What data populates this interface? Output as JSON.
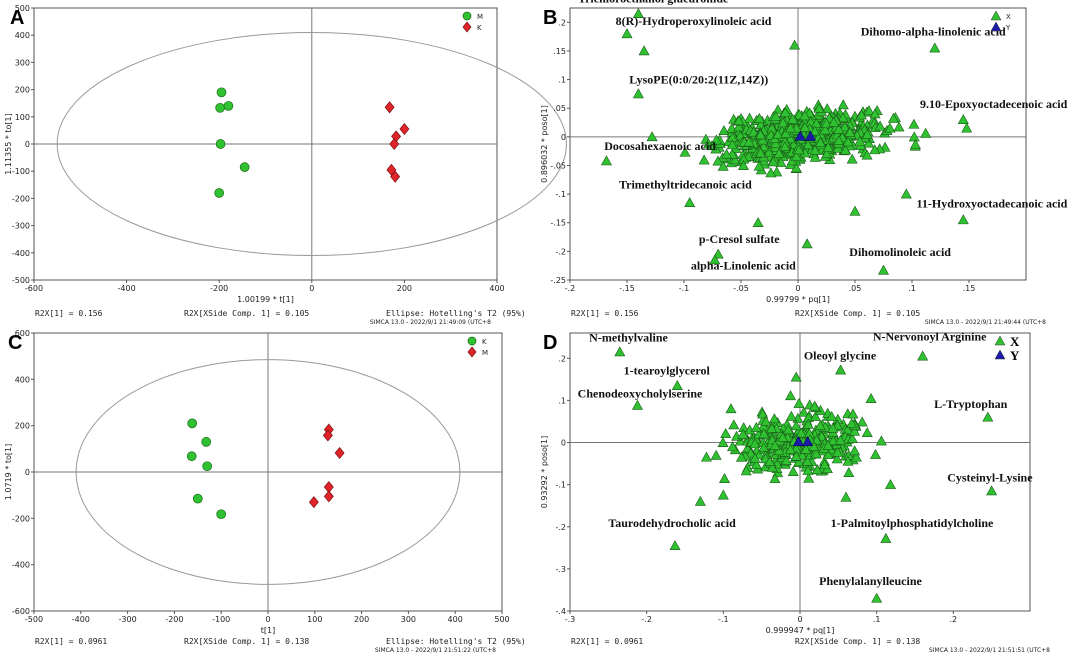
{
  "chart_data": [
    {
      "panel": "A",
      "type": "scatter",
      "subtype": "OPLS-DA score plot",
      "xlabel": "1.00199 * t[1]",
      "ylabel": "1.11355 * to[1]",
      "xlim": [
        -600,
        400
      ],
      "ylim": [
        -500,
        500
      ],
      "xticks": [
        -600,
        -400,
        -200,
        0,
        200,
        400
      ],
      "yticks": [
        -500,
        -400,
        -300,
        -200,
        -100,
        0,
        100,
        200,
        300,
        400,
        500
      ],
      "ellipse": {
        "rx": 550,
        "ry": 410
      },
      "legend": [
        {
          "name": "M",
          "marker": "circle",
          "color": "#2fc12f"
        },
        {
          "name": "K",
          "marker": "diamond",
          "color": "#e0242a"
        }
      ],
      "series": [
        {
          "name": "M",
          "marker": "circle",
          "points": [
            [
              -195,
              190
            ],
            [
              -198,
              133
            ],
            [
              -180,
              140
            ],
            [
              -197,
              0
            ],
            [
              -145,
              -85
            ],
            [
              -200,
              -180
            ]
          ]
        },
        {
          "name": "K",
          "marker": "diamond",
          "points": [
            [
              168,
              135
            ],
            [
              200,
              55
            ],
            [
              182,
              28
            ],
            [
              178,
              0
            ],
            [
              172,
              -95
            ],
            [
              180,
              -120
            ]
          ]
        }
      ],
      "footer": {
        "r2x": "R2X[1] = 0.156",
        "r2x_xside": "R2X[XSide Comp. 1] = 0.105",
        "ellipse": "Ellipse: Hotelling's T2 (95%)",
        "stamp": "SIMCA 13.0 - 2022/9/1 21:49:09 (UTC+8"
      }
    },
    {
      "panel": "B",
      "type": "scatter",
      "subtype": "S-plot",
      "xlabel": "0.99799 * pq[1]",
      "ylabel": "0.896032 * poso[1]",
      "xlim": [
        -0.2,
        0.2
      ],
      "ylim": [
        -0.25,
        0.225
      ],
      "xticks": [
        -0.2,
        -0.15,
        -0.1,
        -0.05,
        0,
        0.05,
        0.1,
        0.15
      ],
      "yticks": [
        -0.25,
        -0.2,
        -0.15,
        -0.1,
        -0.05,
        0,
        0.05,
        0.1,
        0.15,
        0.2
      ],
      "legend": [
        {
          "name": "X",
          "marker": "triangle",
          "color": "#2fc12f"
        },
        {
          "name": "Y",
          "marker": "triangle",
          "color": "#1c1ca8"
        }
      ],
      "y_points": [
        [
          0.002,
          0.001
        ],
        [
          0.011,
          0.001
        ]
      ],
      "cloud": {
        "count": 620,
        "x_spread": 0.033,
        "y_spread": 0.021,
        "seed": 7
      },
      "outliers": [
        [
          -0.14,
          0.215
        ],
        [
          -0.15,
          0.18
        ],
        [
          -0.135,
          0.15
        ],
        [
          -0.003,
          0.16
        ],
        [
          0.12,
          0.155
        ],
        [
          -0.14,
          0.075
        ],
        [
          -0.128,
          0.0
        ],
        [
          -0.168,
          -0.042
        ],
        [
          0.145,
          0.03
        ],
        [
          0.148,
          0.015
        ],
        [
          -0.095,
          -0.115
        ],
        [
          -0.07,
          -0.205
        ],
        [
          -0.073,
          -0.215
        ],
        [
          0.008,
          -0.187
        ],
        [
          0.075,
          -0.233
        ],
        [
          0.145,
          -0.145
        ],
        [
          0.095,
          -0.1
        ],
        [
          0.05,
          -0.13
        ],
        [
          -0.035,
          -0.15
        ],
        [
          0.112,
          0.006
        ]
      ],
      "annotations": [
        {
          "text": "Trichloroethanol glucuronide",
          "x": -0.193,
          "y": 0.235
        },
        {
          "text": "8(R)-Hydroperoxylinoleic acid",
          "x": -0.16,
          "y": 0.195
        },
        {
          "text": "Dihomo-alpha-linolenic acid",
          "x": 0.055,
          "y": 0.177
        },
        {
          "text": "LysoPE(0:0/20:2(11Z,14Z))",
          "x": -0.148,
          "y": 0.093
        },
        {
          "text": "9.10-Epoxyoctadecenoic acid",
          "x": 0.107,
          "y": 0.05
        },
        {
          "text": "Docosahexaenoic acid",
          "x": -0.17,
          "y": -0.023
        },
        {
          "text": "Trimethyltridecanoic acid",
          "x": -0.157,
          "y": -0.09
        },
        {
          "text": "11-Hydroxyoctadecanoic acid",
          "x": 0.104,
          "y": -0.123
        },
        {
          "text": "p-Cresol sulfate",
          "x": -0.087,
          "y": -0.185
        },
        {
          "text": "Dihomolinoleic acid",
          "x": 0.045,
          "y": -0.208
        },
        {
          "text": "alpha-Linolenic acid",
          "x": -0.094,
          "y": -0.232
        }
      ],
      "footer": {
        "r2x": "R2X[1] = 0.156",
        "r2x_xside": "R2X[XSide Comp. 1] = 0.105",
        "stamp": "SIMCA 13.0 - 2022/9/1 21:49:44 (UTC+8"
      }
    },
    {
      "panel": "C",
      "type": "scatter",
      "subtype": "OPLS-DA score plot",
      "xlabel": "t[1]",
      "ylabel": "1.0719 * to[1]",
      "xlim": [
        -500,
        500
      ],
      "ylim": [
        -600,
        600
      ],
      "xticks": [
        -500,
        -400,
        -300,
        -200,
        -100,
        0,
        100,
        200,
        300,
        400,
        500
      ],
      "yticks": [
        -600,
        -400,
        -200,
        0,
        200,
        400,
        600
      ],
      "ellipse": {
        "rx": 410,
        "ry": 485
      },
      "legend": [
        {
          "name": "K",
          "marker": "circle",
          "color": "#2fc12f"
        },
        {
          "name": "M",
          "marker": "diamond",
          "color": "#e0242a"
        }
      ],
      "series": [
        {
          "name": "K",
          "marker": "circle",
          "points": [
            [
              -162,
              210
            ],
            [
              -132,
              130
            ],
            [
              -163,
              68
            ],
            [
              -130,
              25
            ],
            [
              -150,
              -115
            ],
            [
              -100,
              -182
            ]
          ]
        },
        {
          "name": "M",
          "marker": "diamond",
          "points": [
            [
              130,
              183
            ],
            [
              128,
              158
            ],
            [
              153,
              82
            ],
            [
              130,
              -65
            ],
            [
              130,
              -105
            ],
            [
              98,
              -130
            ]
          ]
        }
      ],
      "footer": {
        "r2x": "R2X[1] = 0.0961",
        "r2x_xside": "R2X[XSide Comp. 1] = 0.138",
        "ellipse": "Ellipse: Hotelling's T2 (95%)",
        "stamp": "SIMCA 13.0 - 2022/9/1 21:51:22 (UTC+8"
      }
    },
    {
      "panel": "D",
      "type": "scatter",
      "subtype": "S-plot",
      "xlabel": "0.999947 * pq[1]",
      "ylabel": "0.93292 * poso[1]",
      "xlim": [
        -0.3,
        0.3
      ],
      "ylim": [
        -0.4,
        0.26
      ],
      "xticks": [
        -0.3,
        -0.2,
        -0.1,
        0,
        0.1,
        0.2
      ],
      "yticks": [
        -0.4,
        -0.3,
        -0.2,
        -0.1,
        0,
        0.1,
        0.2
      ],
      "legend": [
        {
          "name": "X",
          "marker": "triangle",
          "color": "#2fc12f"
        },
        {
          "name": "Y",
          "marker": "triangle",
          "color": "#1c1ca8"
        }
      ],
      "y_points": [
        [
          -0.002,
          0.002
        ],
        [
          0.01,
          0.002
        ]
      ],
      "cloud": {
        "count": 340,
        "x_spread": 0.042,
        "y_spread": 0.034,
        "seed": 13
      },
      "outliers": [
        [
          -0.235,
          0.215
        ],
        [
          -0.16,
          0.135
        ],
        [
          -0.212,
          0.088
        ],
        [
          0.053,
          0.172
        ],
        [
          0.16,
          0.205
        ],
        [
          0.245,
          0.06
        ],
        [
          0.25,
          -0.115
        ],
        [
          0.118,
          -0.1
        ],
        [
          0.112,
          -0.228
        ],
        [
          0.1,
          -0.37
        ],
        [
          -0.163,
          -0.245
        ],
        [
          -0.13,
          -0.14
        ],
        [
          -0.1,
          -0.125
        ],
        [
          0.06,
          -0.13
        ],
        [
          -0.005,
          0.155
        ],
        [
          -0.09,
          0.08
        ]
      ],
      "annotations": [
        {
          "text": "N-methylvaline",
          "x": -0.275,
          "y": 0.24
        },
        {
          "text": "N-Nervonoyl Arginine",
          "x": 0.095,
          "y": 0.242
        },
        {
          "text": "1-tearoylglycerol",
          "x": -0.23,
          "y": 0.162
        },
        {
          "text": "Oleoyl glycine",
          "x": 0.005,
          "y": 0.197
        },
        {
          "text": "Chenodeoxycholylserine",
          "x": -0.29,
          "y": 0.107
        },
        {
          "text": "L-Tryptophan",
          "x": 0.175,
          "y": 0.082
        },
        {
          "text": "Cysteinyl-Lysine",
          "x": 0.192,
          "y": -0.093
        },
        {
          "text": "1-Palmitoylphosphatidylcholine",
          "x": 0.04,
          "y": -0.2
        },
        {
          "text": "Taurodehydrocholic acid",
          "x": -0.25,
          "y": -0.2
        },
        {
          "text": "Phenylalanylleucine",
          "x": 0.025,
          "y": -0.338
        }
      ],
      "footer": {
        "r2x": "R2X[1] = 0.0961",
        "r2x_xside": "R2X[XSide Comp. 1] = 0.138",
        "stamp": "SIMCA 13.0 - 2022/9/1 21:51:51 (UTC+8"
      }
    }
  ]
}
